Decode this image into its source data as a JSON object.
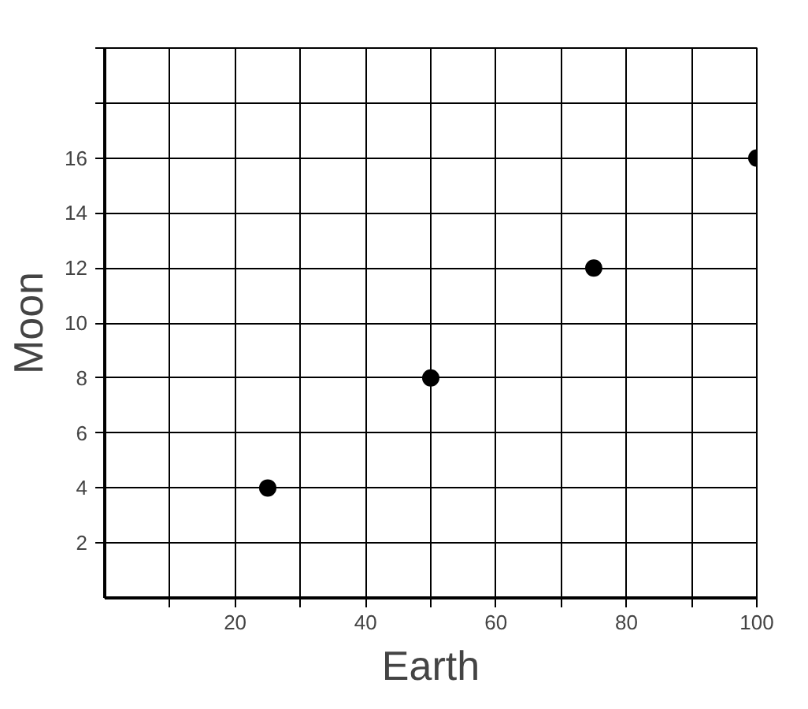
{
  "chart_data": {
    "type": "scatter",
    "xlabel": "Earth",
    "ylabel": "Moon",
    "x": [
      25,
      50,
      75,
      100
    ],
    "values": [
      4,
      8,
      12,
      16
    ],
    "color": "#000000",
    "marker": "circle",
    "grid": true,
    "xlim": [
      0,
      100
    ],
    "ylim": [
      0,
      20
    ],
    "xticks": [
      {
        "value": 10,
        "label": null
      },
      20,
      {
        "value": 30,
        "label": null
      },
      40,
      {
        "value": 50,
        "label": null
      },
      60,
      {
        "value": 70,
        "label": null
      },
      80,
      {
        "value": 90,
        "label": null
      },
      100
    ],
    "yticks": [
      2,
      4,
      6,
      8,
      10,
      12,
      14,
      16,
      {
        "value": 18,
        "label": null
      },
      {
        "value": 20,
        "label": null
      }
    ]
  }
}
